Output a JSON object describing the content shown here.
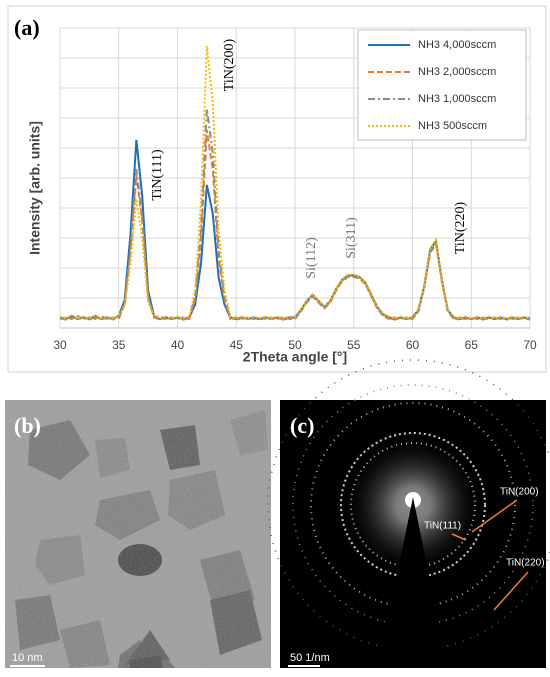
{
  "chart_data": {
    "type": "line",
    "panel_label": "(a)",
    "xlabel": "2Theta angle [°]",
    "ylabel": "Intensity [arb. units]",
    "xlim": [
      30,
      70
    ],
    "xticks": [
      30,
      35,
      40,
      45,
      50,
      55,
      60,
      65,
      70
    ],
    "ylim": [
      0,
      10
    ],
    "ygrid": [
      0,
      1,
      2,
      3,
      4,
      5,
      6,
      7,
      8,
      9,
      10
    ],
    "grid": true,
    "legend": "upper right",
    "annotations": [
      "TiN(111)",
      "TiN(200)",
      "Si(112)",
      "Si(311)",
      "TiN(220)"
    ],
    "x": [
      30,
      30.5,
      31,
      31.5,
      32,
      32.5,
      33,
      33.5,
      34,
      34.5,
      35,
      35.5,
      36,
      36.5,
      37,
      37.5,
      38,
      38.5,
      39,
      39.5,
      40,
      40.5,
      41,
      41.5,
      42,
      42.5,
      43,
      43.5,
      44,
      44.5,
      45,
      45.5,
      46,
      46.5,
      47,
      47.5,
      48,
      48.5,
      49,
      49.5,
      50,
      50.5,
      51,
      51.5,
      52,
      52.5,
      53,
      53.5,
      54,
      54.5,
      55,
      55.5,
      56,
      56.5,
      57,
      57.5,
      58,
      58.5,
      59,
      59.5,
      60,
      60.5,
      61,
      61.5,
      62,
      62.5,
      63,
      63.5,
      64,
      64.5,
      65,
      65.5,
      66,
      66.5,
      67,
      67.5,
      68,
      68.5,
      69,
      69.5,
      70
    ],
    "series": [
      {
        "name": "NH3 4,000sccm",
        "color": "#1f6fb5",
        "line_style": "solid",
        "values": [
          0.35,
          0.3,
          0.4,
          0.3,
          0.35,
          0.3,
          0.4,
          0.3,
          0.35,
          0.3,
          0.4,
          0.93,
          3.14,
          6.27,
          4.39,
          1.25,
          0.4,
          0.3,
          0.35,
          0.3,
          0.35,
          0.3,
          0.35,
          0.78,
          2.15,
          4.77,
          3.82,
          1.67,
          0.78,
          0.35,
          0.3,
          0.35,
          0.3,
          0.35,
          0.3,
          0.35,
          0.3,
          0.35,
          0.3,
          0.35,
          0.35,
          0.6,
          0.9,
          1.1,
          0.9,
          0.7,
          0.9,
          1.3,
          1.6,
          1.75,
          1.75,
          1.7,
          1.5,
          1.1,
          0.7,
          0.45,
          0.35,
          0.3,
          0.35,
          0.3,
          0.35,
          0.6,
          1.4,
          2.6,
          2.9,
          1.6,
          0.6,
          0.35,
          0.3,
          0.35,
          0.3,
          0.35,
          0.3,
          0.35,
          0.3,
          0.35,
          0.3,
          0.35,
          0.3,
          0.35,
          0.3
        ]
      },
      {
        "name": "NH3 2,000sccm",
        "color": "#ed7d31",
        "line_style": "dashed",
        "values": [
          0.3,
          0.35,
          0.3,
          0.4,
          0.3,
          0.35,
          0.3,
          0.4,
          0.3,
          0.35,
          0.3,
          0.81,
          2.55,
          5.1,
          3.57,
          1.02,
          0.35,
          0.4,
          0.3,
          0.35,
          0.3,
          0.35,
          0.3,
          0.96,
          2.97,
          6.6,
          5.28,
          2.31,
          0.96,
          0.3,
          0.35,
          0.3,
          0.35,
          0.3,
          0.35,
          0.3,
          0.35,
          0.3,
          0.35,
          0.3,
          0.3,
          0.55,
          0.85,
          1.05,
          0.85,
          0.65,
          0.85,
          1.25,
          1.55,
          1.7,
          1.7,
          1.65,
          1.45,
          1.05,
          0.65,
          0.4,
          0.3,
          0.35,
          0.3,
          0.35,
          0.3,
          0.55,
          1.35,
          2.5,
          2.8,
          1.55,
          0.55,
          0.3,
          0.35,
          0.3,
          0.35,
          0.3,
          0.35,
          0.3,
          0.35,
          0.3,
          0.35,
          0.3,
          0.35,
          0.3,
          0.35
        ]
      },
      {
        "name": "NH3 1,000sccm",
        "color": "#8c8c8c",
        "line_style": "dashdot",
        "values": [
          0.33,
          0.28,
          0.36,
          0.3,
          0.33,
          0.28,
          0.36,
          0.3,
          0.33,
          0.28,
          0.36,
          0.83,
          2.65,
          5.3,
          3.71,
          1.06,
          0.36,
          0.28,
          0.33,
          0.3,
          0.33,
          0.28,
          0.33,
          1.03,
          3.29,
          7.3,
          5.84,
          2.56,
          1.03,
          0.33,
          0.28,
          0.33,
          0.3,
          0.33,
          0.28,
          0.33,
          0.3,
          0.33,
          0.28,
          0.33,
          0.33,
          0.58,
          0.88,
          1.08,
          0.88,
          0.68,
          0.88,
          1.28,
          1.58,
          1.72,
          1.72,
          1.68,
          1.48,
          1.08,
          0.68,
          0.43,
          0.33,
          0.28,
          0.33,
          0.3,
          0.33,
          0.58,
          1.38,
          2.55,
          2.85,
          1.58,
          0.58,
          0.33,
          0.28,
          0.33,
          0.3,
          0.33,
          0.28,
          0.33,
          0.3,
          0.33,
          0.28,
          0.33,
          0.3,
          0.33,
          0.28
        ]
      },
      {
        "name": "NH3 500sccm",
        "color": "#f5b800",
        "line_style": "dotted",
        "values": [
          0.38,
          0.32,
          0.42,
          0.32,
          0.38,
          0.32,
          0.42,
          0.32,
          0.38,
          0.32,
          0.42,
          0.73,
          2.15,
          4.3,
          3.01,
          0.86,
          0.42,
          0.32,
          0.38,
          0.32,
          0.38,
          0.32,
          0.38,
          1.24,
          4.23,
          9.4,
          7.52,
          3.29,
          1.24,
          0.38,
          0.32,
          0.38,
          0.32,
          0.38,
          0.32,
          0.38,
          0.32,
          0.38,
          0.32,
          0.38,
          0.38,
          0.62,
          0.92,
          1.12,
          0.92,
          0.72,
          0.92,
          1.32,
          1.62,
          1.78,
          1.78,
          1.72,
          1.52,
          1.12,
          0.72,
          0.48,
          0.38,
          0.32,
          0.38,
          0.32,
          0.38,
          0.62,
          1.42,
          2.65,
          2.95,
          1.62,
          0.62,
          0.38,
          0.32,
          0.38,
          0.32,
          0.38,
          0.32,
          0.38,
          0.32,
          0.38,
          0.32,
          0.38,
          0.32,
          0.38,
          0.32
        ]
      }
    ]
  },
  "images": {
    "b": {
      "panel_label": "(b)",
      "scale_bar": "10 nm"
    },
    "c": {
      "panel_label": "(c)",
      "scale_bar": "50 1/nm",
      "rings": [
        "TiN(200)",
        "TiN(111)",
        "TiN(220)"
      ]
    }
  }
}
